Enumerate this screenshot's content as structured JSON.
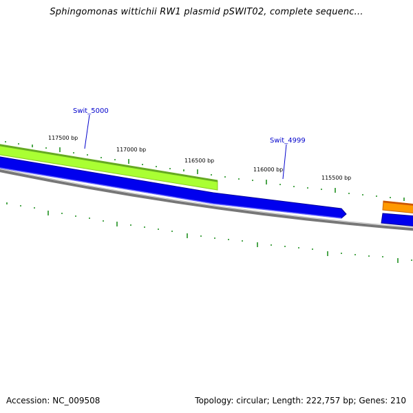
{
  "title": "Sphingomonas wittichii RW1 plasmid pSWIT02, complete sequenc...",
  "footer": {
    "accession": "Accession: NC_009508",
    "summary": "Topology: circular; Length: 222,757 bp; Genes: 210"
  },
  "colors": {
    "backbone": "#777777",
    "tick": "#118811",
    "gene_green": "#aaff33",
    "gene_green_edge": "#77bb22",
    "gene_blue": "#0000ee",
    "gene_orange": "#ff8800",
    "label_blue": "#0000cc"
  },
  "bp_labels": [
    "117500 bp",
    "117000 bp",
    "116500 bp",
    "116000 bp",
    "115500 bp"
  ],
  "gene_labels": [
    "Swit_5000",
    "Swit_4999"
  ]
}
